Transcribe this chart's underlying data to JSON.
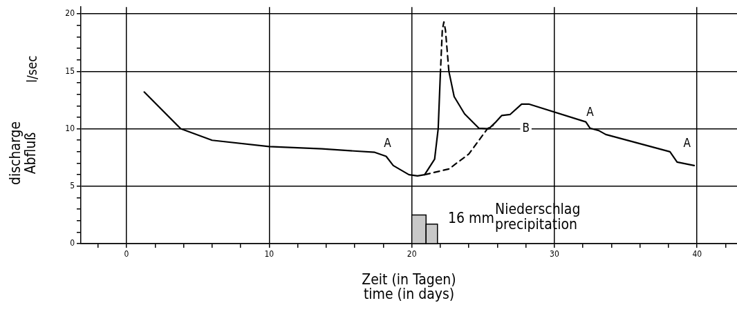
{
  "chart_data": {
    "type": "line",
    "xlabel": "Zeit (in Tagen)\ntime (in days)",
    "ylabel": "discharge\nAbfluß",
    "xlim": [
      -3.2,
      42.8
    ],
    "xticks": [
      {
        "value": -2,
        "label": null
      },
      0,
      {
        "value": 2,
        "label": null
      },
      {
        "value": 4,
        "label": null
      },
      {
        "value": 6,
        "label": null
      },
      {
        "value": 8,
        "label": null
      },
      10,
      {
        "value": 12,
        "label": null
      },
      {
        "value": 14,
        "label": null
      },
      {
        "value": 16,
        "label": null
      },
      {
        "value": 18,
        "label": null
      },
      20,
      {
        "value": 22,
        "label": null
      },
      {
        "value": 24,
        "label": null
      },
      {
        "value": 26,
        "label": null
      },
      {
        "value": 28,
        "label": null
      },
      30,
      {
        "value": 32,
        "label": null
      },
      {
        "value": 34,
        "label": null
      },
      {
        "value": 36,
        "label": null
      },
      {
        "value": 38,
        "label": null
      },
      40,
      {
        "value": 42,
        "label": null
      }
    ],
    "ylim": [
      0,
      20.6
    ],
    "yticks": [
      0,
      {
        "value": 1,
        "label": null
      },
      {
        "value": 2,
        "label": null
      },
      {
        "value": 3,
        "label": null
      },
      {
        "value": 4,
        "label": null
      },
      5,
      {
        "value": 6,
        "label": null
      },
      {
        "value": 7,
        "label": null
      },
      {
        "value": 8,
        "label": null
      },
      {
        "value": 9,
        "label": null
      },
      10,
      {
        "value": 11,
        "label": null
      },
      {
        "value": 12,
        "label": null
      },
      {
        "value": 13,
        "label": null
      },
      {
        "value": 14,
        "label": null
      },
      15,
      {
        "value": 16,
        "label": null
      },
      {
        "value": 17,
        "label": null
      },
      {
        "value": 18,
        "label": null
      },
      {
        "value": 19,
        "label": null
      },
      20
    ],
    "grid": true,
    "legend": false,
    "marker": "none",
    "series": [
      {
        "type": "line",
        "line_style": "solid",
        "color": "#000000",
        "x": [
          1.24,
          3.8,
          6.0,
          10,
          13.7,
          17.4,
          18.2,
          18.7,
          19.8,
          20.4,
          20.9,
          21.6,
          21.85,
          22.0
        ],
        "values": [
          13.2,
          10.0,
          9.0,
          8.45,
          8.25,
          7.95,
          7.6,
          6.8,
          6.0,
          5.9,
          6.0,
          7.35,
          10.0,
          14.7
        ]
      },
      {
        "type": "line",
        "line_style": "dashed",
        "color": "#000000",
        "x": [
          22.0,
          22.14,
          22.25,
          22.36,
          22.6
        ],
        "values": [
          14.7,
          18.6,
          19.3,
          18.6,
          15.0
        ]
      },
      {
        "type": "line",
        "line_style": "solid",
        "color": "#000000",
        "x": [
          22.6,
          22.97,
          23.7,
          24.7,
          25.4,
          25.9,
          26.3,
          26.9,
          27.7,
          28.2,
          32.2,
          32.5,
          33.1,
          33.6,
          38.1,
          38.6,
          39.8
        ],
        "values": [
          15.0,
          12.8,
          11.3,
          10.05,
          10.0,
          10.6,
          11.15,
          11.25,
          12.15,
          12.15,
          10.6,
          10.05,
          9.85,
          9.5,
          8.0,
          7.1,
          6.8
        ]
      },
      {
        "type": "line",
        "line_style": "dashed",
        "color": "#000000",
        "x": [
          20.9,
          22.6,
          24.0,
          25.3,
          25.7
        ],
        "values": [
          6.0,
          6.5,
          7.8,
          10.0,
          10.3
        ]
      },
      {
        "type": "histogram",
        "color": "#000000",
        "bins": [
          20,
          21,
          21.8
        ],
        "values": [
          2.5,
          1.7
        ]
      }
    ],
    "annotations": [
      {
        "text": "A",
        "x": 18.3,
        "y": 8.7
      },
      {
        "text": "B",
        "x": 28.0,
        "y": 10
      },
      {
        "text": "A",
        "x": 32.5,
        "y": 11.4
      },
      {
        "text": "A",
        "x": 39.3,
        "y": 8.7
      },
      "16 mm",
      "Niederschlag\nprecipitation",
      "l/sec"
    ]
  }
}
